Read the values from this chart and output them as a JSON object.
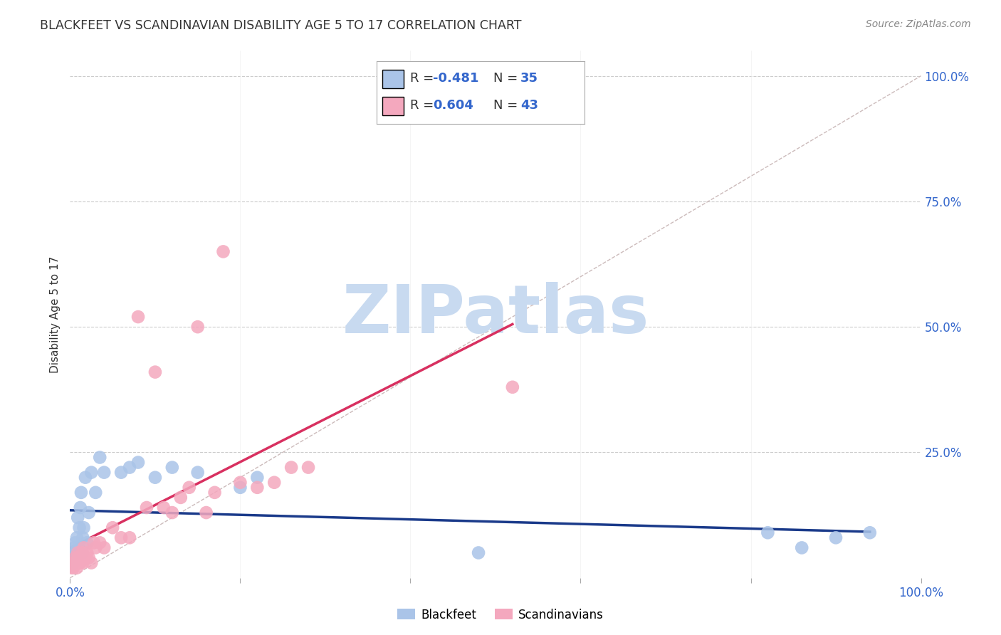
{
  "title": "BLACKFEET VS SCANDINAVIAN DISABILITY AGE 5 TO 17 CORRELATION CHART",
  "source": "Source: ZipAtlas.com",
  "ylabel": "Disability Age 5 to 17",
  "blackfeet_color": "#aac4e8",
  "scandinavian_color": "#f4a8be",
  "blackfeet_line_color": "#1a3a8a",
  "scandinavian_line_color": "#d83060",
  "diagonal_color": "#ccbbbb",
  "grid_color": "#cccccc",
  "background_color": "#ffffff",
  "blackfeet_r": -0.481,
  "blackfeet_n": 35,
  "scandinavian_r": 0.604,
  "scandinavian_n": 43,
  "blackfeet_x": [
    0.002,
    0.003,
    0.004,
    0.005,
    0.006,
    0.007,
    0.008,
    0.009,
    0.01,
    0.011,
    0.012,
    0.013,
    0.014,
    0.015,
    0.016,
    0.018,
    0.02,
    0.022,
    0.025,
    0.03,
    0.035,
    0.04,
    0.06,
    0.07,
    0.08,
    0.1,
    0.12,
    0.15,
    0.2,
    0.22,
    0.48,
    0.82,
    0.86,
    0.9,
    0.94
  ],
  "blackfeet_y": [
    0.04,
    0.05,
    0.03,
    0.06,
    0.07,
    0.05,
    0.08,
    0.12,
    0.06,
    0.1,
    0.14,
    0.17,
    0.05,
    0.08,
    0.1,
    0.2,
    0.07,
    0.13,
    0.21,
    0.17,
    0.24,
    0.21,
    0.21,
    0.22,
    0.23,
    0.2,
    0.22,
    0.21,
    0.18,
    0.2,
    0.05,
    0.09,
    0.06,
    0.08,
    0.09
  ],
  "scandinavian_x": [
    0.002,
    0.003,
    0.004,
    0.005,
    0.006,
    0.007,
    0.008,
    0.009,
    0.01,
    0.011,
    0.012,
    0.013,
    0.014,
    0.015,
    0.016,
    0.018,
    0.02,
    0.022,
    0.025,
    0.028,
    0.03,
    0.035,
    0.04,
    0.05,
    0.06,
    0.07,
    0.08,
    0.09,
    0.1,
    0.11,
    0.12,
    0.13,
    0.14,
    0.15,
    0.16,
    0.17,
    0.18,
    0.2,
    0.22,
    0.24,
    0.26,
    0.28,
    0.52
  ],
  "scandinavian_y": [
    0.02,
    0.03,
    0.02,
    0.03,
    0.04,
    0.03,
    0.02,
    0.05,
    0.04,
    0.03,
    0.03,
    0.04,
    0.05,
    0.03,
    0.06,
    0.04,
    0.05,
    0.04,
    0.03,
    0.07,
    0.06,
    0.07,
    0.06,
    0.1,
    0.08,
    0.08,
    0.52,
    0.14,
    0.41,
    0.14,
    0.13,
    0.16,
    0.18,
    0.5,
    0.13,
    0.17,
    0.65,
    0.19,
    0.18,
    0.19,
    0.22,
    0.22,
    0.38
  ],
  "xlim": [
    0.0,
    1.0
  ],
  "ylim": [
    0.0,
    1.05
  ],
  "watermark_zip": "ZIP",
  "watermark_atlas": "atlas",
  "watermark_color_zip": "#c8daf0",
  "watermark_color_atlas": "#c8daf0",
  "watermark_fontsize": 68
}
